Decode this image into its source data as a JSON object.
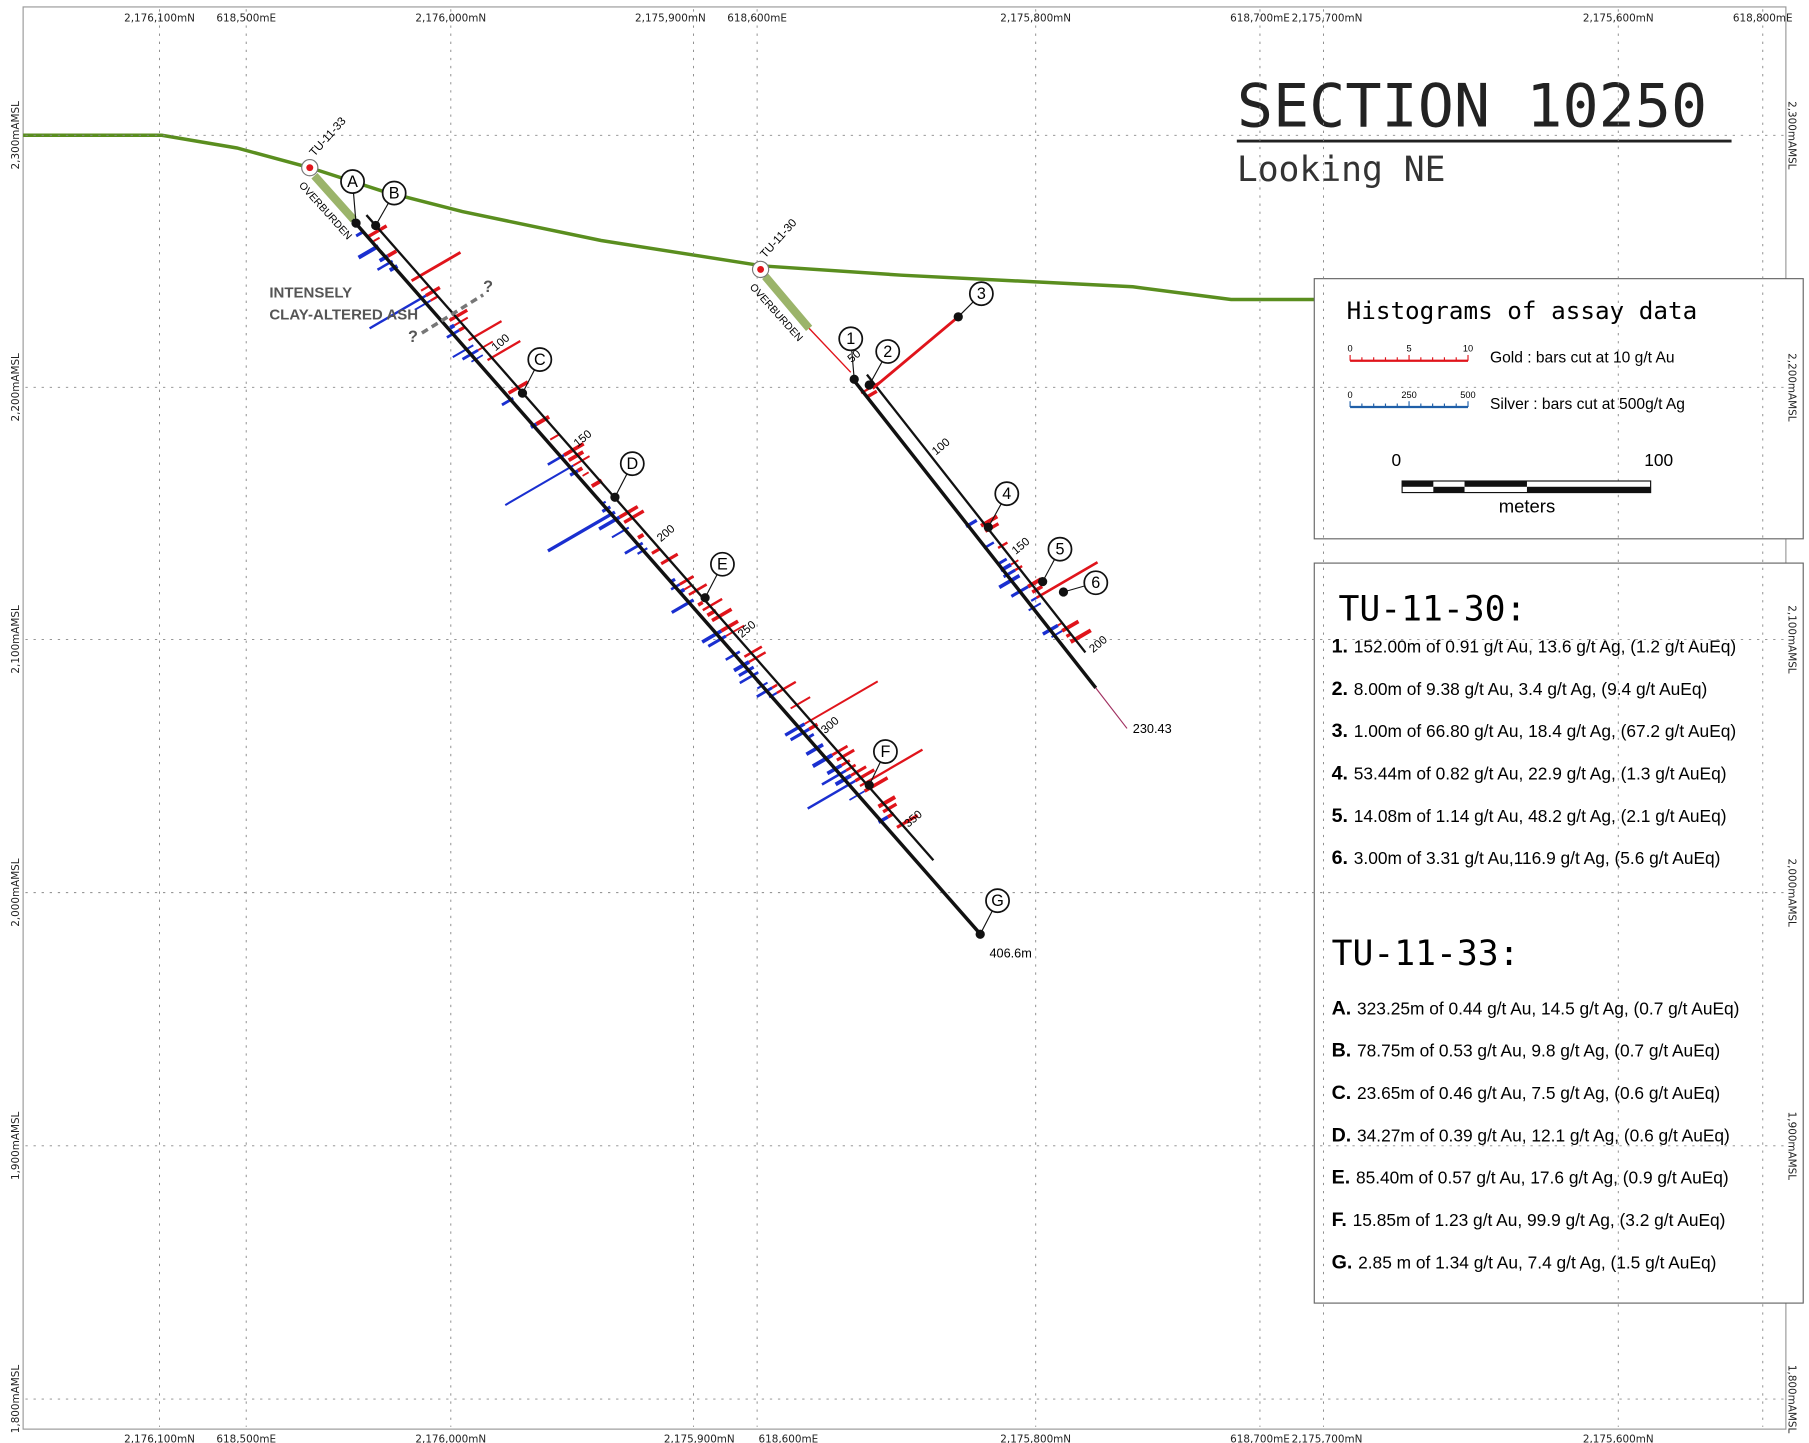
{
  "title": "SECTION 10250",
  "subtitle": "Looking NE",
  "top_coords": [
    "2,176,100mN",
    "618,500mE",
    "2,176,000mN",
    "2,175,900mN",
    "618,600mE",
    "2,175,800mN",
    "618,700mE",
    "2,175,700mN",
    "2,175,600mN",
    "618,800mE"
  ],
  "bottom_coords": [
    "2,176,100mN",
    "618,500mE",
    "2,176,000mN",
    "2,175,900mN",
    "618,600mE",
    "2,175,800mN",
    "618,700mE",
    "2,175,700mN",
    "2,175,600mN"
  ],
  "elevations": [
    "2,300mAMSL",
    "2,200mAMSL",
    "2,100mAMSL",
    "2,000mAMSL",
    "1,900mAMSL",
    "1,800mAMSL"
  ],
  "annotation": [
    "INTENSELY",
    "CLAY-ALTERED ASH"
  ],
  "question_mark": "?",
  "legend": {
    "title": "Histograms of assay data",
    "gold_ticks": [
      "0",
      "5",
      "10"
    ],
    "gold_label": "Gold :  bars cut at 10 g/t Au",
    "silver_ticks": [
      "0",
      "250",
      "500"
    ],
    "silver_label": "Silver : bars cut at 500g/t Ag",
    "scale_ticks": [
      "0",
      "100"
    ],
    "scale_unit": "meters"
  },
  "holes": [
    {
      "name": "TU-11-30",
      "header": "TU-11-30:",
      "overburden": "OVERBURDEN",
      "end_depth": "230.43",
      "depth_ticks": [
        "50",
        "100",
        "150",
        "200"
      ],
      "intercepts": [
        {
          "marker": "1",
          "id": "1.",
          "text": "152.00m of 0.91 g/t Au, 13.6 g/t Ag, (1.2 g/t AuEq)"
        },
        {
          "marker": "2",
          "id": "2.",
          "text": "8.00m of 9.38 g/t Au, 3.4 g/t Ag, (9.4 g/t AuEq)"
        },
        {
          "marker": "3",
          "id": "3.",
          "text": "1.00m of 66.80 g/t Au, 18.4 g/t Ag, (67.2 g/t AuEq)"
        },
        {
          "marker": "4",
          "id": "4.",
          "text": "53.44m of 0.82 g/t Au, 22.9 g/t Ag, (1.3 g/t AuEq)"
        },
        {
          "marker": "5",
          "id": "5.",
          "text": "14.08m of 1.14 g/t Au, 48.2 g/t Ag, (2.1 g/t AuEq)"
        },
        {
          "marker": "6",
          "id": "6.",
          "text": "3.00m of 3.31 g/t Au,116.9 g/t Ag, (5.6 g/t AuEq)"
        }
      ]
    },
    {
      "name": "TU-11-33",
      "header": "TU-11-33:",
      "overburden": "OVERBURDEN",
      "end_depth": "406.6m",
      "depth_ticks": [
        "100",
        "150",
        "200",
        "250",
        "300",
        "350"
      ],
      "intercepts": [
        {
          "marker": "A",
          "id": "A.",
          "text": "323.25m of 0.44 g/t Au, 14.5 g/t Ag, (0.7 g/t AuEq)"
        },
        {
          "marker": "B",
          "id": "B.",
          "text": "78.75m of 0.53 g/t Au, 9.8 g/t Ag, (0.7 g/t AuEq)"
        },
        {
          "marker": "C",
          "id": "C.",
          "text": "23.65m of 0.46 g/t Au, 7.5 g/t Ag, (0.6 g/t AuEq)"
        },
        {
          "marker": "D",
          "id": "D.",
          "text": "34.27m of 0.39 g/t Au, 12.1 g/t Ag, (0.6 g/t AuEq)"
        },
        {
          "marker": "E",
          "id": "E.",
          "text": "85.40m of 0.57 g/t Au, 17.6 g/t Ag, (0.9 g/t AuEq)"
        },
        {
          "marker": "F",
          "id": "F.",
          "text": "15.85m of 1.23 g/t Au, 99.9 g/t Ag, (3.2 g/t AuEq)"
        },
        {
          "marker": "G",
          "id": "G.",
          "text": "2.85 m of 1.34 g/t Au, 7.4 g/t Ag, (1.5 g/t AuEq)"
        }
      ]
    }
  ]
}
